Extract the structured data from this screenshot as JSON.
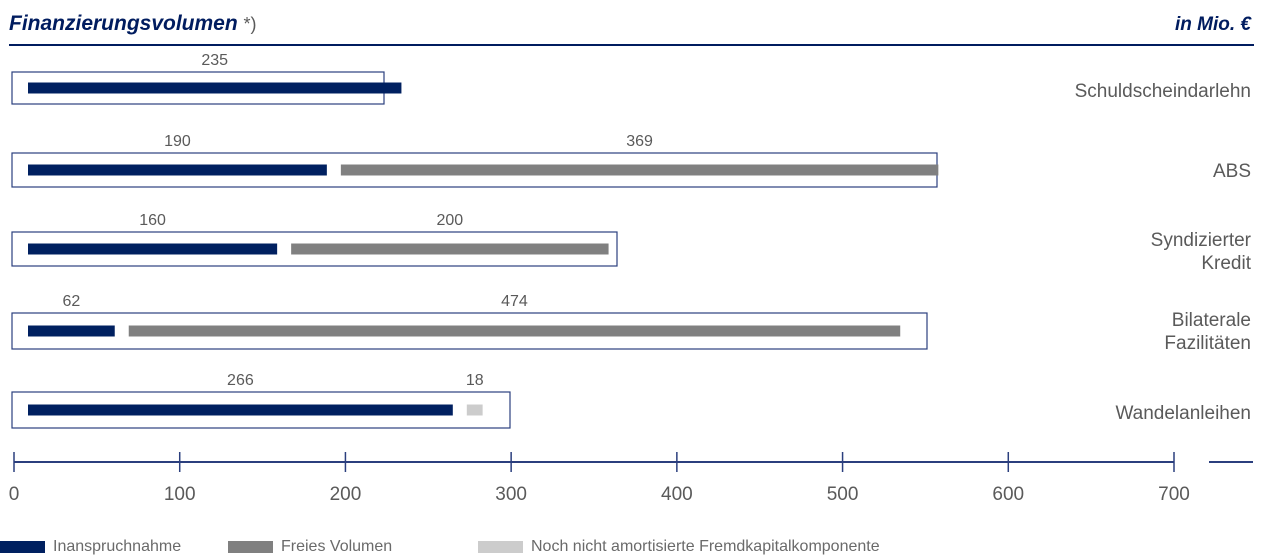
{
  "header": {
    "title": "Finanzierungsvolumen",
    "title_note": "*)",
    "unit": "in Mio. €"
  },
  "colors": {
    "navy": "#002060",
    "gray": "#808080",
    "light_gray": "#cccccc",
    "frame": "#2b3f7e",
    "text": "#5a5a5a"
  },
  "legend": [
    {
      "label": "Inanspruchnahme",
      "color": "#002060"
    },
    {
      "label": "Freies Volumen",
      "color": "#808080"
    },
    {
      "label": "Noch nicht amortisierte Fremdkapitalkomponente",
      "color": "#cccccc"
    }
  ],
  "chart_data": {
    "type": "bar",
    "orientation": "horizontal",
    "stacked": true,
    "categories": [
      "Schuldscheindarlehn",
      "ABS",
      "Syndizierter Kredit",
      "Bilaterale Fazilitäten",
      "Wandelanleihen"
    ],
    "series": [
      {
        "name": "Inanspruchnahme",
        "values": [
          235,
          190,
          160,
          62,
          266
        ]
      },
      {
        "name": "Freies Volumen",
        "values": [
          null,
          369,
          200,
          474,
          null
        ]
      },
      {
        "name": "Noch nicht amortisierte Fremdkapitalkomponente",
        "values": [
          null,
          null,
          null,
          null,
          18
        ]
      }
    ],
    "xlim": [
      0,
      700
    ],
    "xticks": [
      "0",
      "100",
      "200",
      "300",
      "400",
      "500",
      "600",
      "700"
    ],
    "grid": false,
    "legend_position": "bottom-left"
  }
}
